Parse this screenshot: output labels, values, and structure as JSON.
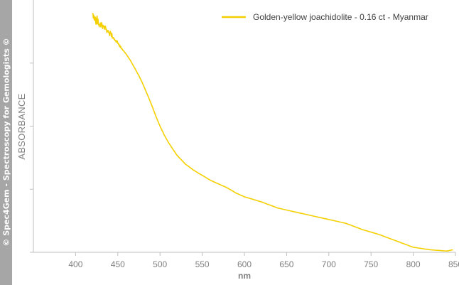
{
  "watermark": "© Spec4Gem - Spectroscopy for Gemologists ©",
  "chart_data": {
    "type": "line",
    "title": "",
    "xlabel": "nm",
    "ylabel": "ABSORBANCE",
    "xlim": [
      350,
      850
    ],
    "ylim": [
      0,
      1
    ],
    "x_ticks": [
      400,
      450,
      500,
      550,
      600,
      650,
      700,
      750,
      800,
      850
    ],
    "y_ticks": [
      0,
      0.25,
      0.5,
      0.75
    ],
    "y_tick_labels_shown": false,
    "grid": false,
    "legend": "top-right",
    "series": [
      {
        "name": "Golden-yellow joachidolite - 0.16 ct - Myanmar",
        "color": "#f5d000",
        "noise_below_nm": 460,
        "x": [
          420,
          425,
          430,
          435,
          440,
          445,
          450,
          455,
          460,
          465,
          470,
          475,
          480,
          485,
          490,
          495,
          500,
          505,
          510,
          515,
          520,
          530,
          540,
          550,
          560,
          570,
          580,
          590,
          600,
          620,
          640,
          660,
          680,
          700,
          720,
          740,
          760,
          780,
          800,
          820,
          840,
          847
        ],
        "y": [
          0.93,
          0.92,
          0.905,
          0.89,
          0.87,
          0.85,
          0.83,
          0.805,
          0.785,
          0.76,
          0.73,
          0.7,
          0.665,
          0.625,
          0.585,
          0.54,
          0.5,
          0.465,
          0.435,
          0.41,
          0.385,
          0.35,
          0.325,
          0.305,
          0.285,
          0.27,
          0.255,
          0.235,
          0.22,
          0.2,
          0.175,
          0.16,
          0.145,
          0.13,
          0.115,
          0.09,
          0.07,
          0.045,
          0.02,
          0.01,
          0.005,
          0.01
        ]
      }
    ]
  }
}
